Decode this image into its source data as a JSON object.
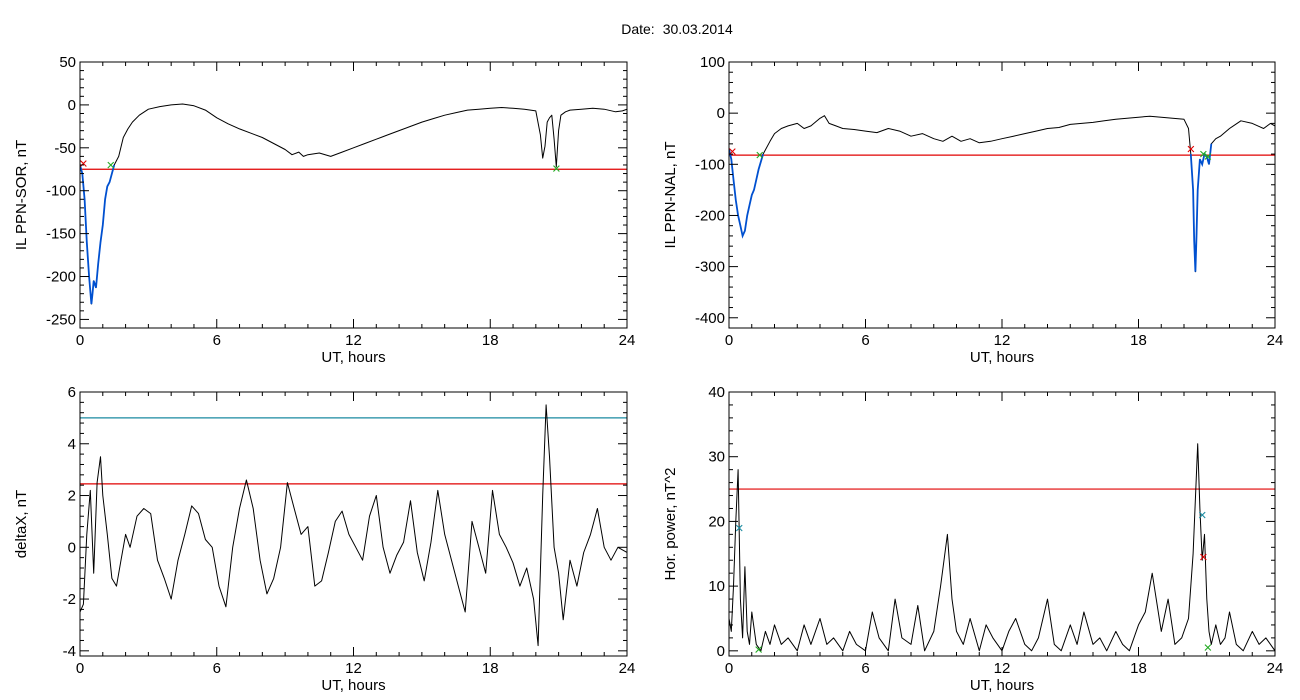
{
  "header": {
    "date_label": "Date:",
    "date_value": "30.03.2014"
  },
  "colors": {
    "trace": "#000000",
    "threshold_red": "#e00000",
    "threshold_blue": "#1a8aa0",
    "highlight_blue": "#0050d0",
    "marker_red": "#e00000",
    "marker_green": "#22aa22",
    "marker_blue": "#1a8aa0"
  },
  "chart_data": [
    {
      "id": "ppn-sor",
      "type": "line",
      "xlabel": "UT, hours",
      "ylabel": "IL PPN-SOR, nT",
      "xlim": [
        0,
        24
      ],
      "ylim": [
        -260,
        50
      ],
      "xticks": [
        0,
        6,
        12,
        18,
        24
      ],
      "yticks": [
        -250,
        -200,
        -150,
        -100,
        -50,
        0,
        50
      ],
      "threshold": {
        "value": -75,
        "color": "red"
      },
      "highlight_range": [
        0,
        1.5
      ],
      "series": [
        {
          "x": [
            0,
            0.1,
            0.2,
            0.3,
            0.4,
            0.5,
            0.55,
            0.6,
            0.7,
            0.8,
            0.9,
            1.0,
            1.1,
            1.2,
            1.3,
            1.5,
            1.7,
            1.9,
            2.1,
            2.3,
            2.6,
            3.0,
            3.5,
            4.0,
            4.5,
            5.0,
            5.5,
            6.0,
            6.5,
            7.0,
            7.5,
            8.0,
            8.5,
            9.0,
            9.3,
            9.6,
            9.8,
            10.0,
            10.5,
            11.0,
            11.5,
            12.0,
            12.5,
            13.0,
            13.5,
            14.0,
            14.5,
            15.0,
            15.5,
            16.0,
            16.5,
            17.0,
            17.5,
            18.0,
            18.5,
            19.0,
            19.5,
            20.0,
            20.2,
            20.3,
            20.4,
            20.5,
            20.6,
            20.7,
            20.8,
            20.9,
            21.0,
            21.1,
            21.3,
            21.5,
            22.0,
            22.5,
            23.0,
            23.5,
            23.8,
            24.0
          ],
          "y": [
            -70,
            -80,
            -110,
            -160,
            -200,
            -232,
            -220,
            -205,
            -213,
            -185,
            -160,
            -140,
            -110,
            -95,
            -90,
            -70,
            -60,
            -38,
            -28,
            -20,
            -12,
            -5,
            -2,
            0,
            1,
            -1,
            -6,
            -15,
            -22,
            -28,
            -33,
            -38,
            -45,
            -52,
            -58,
            -55,
            -60,
            -58,
            -56,
            -60,
            -55,
            -50,
            -45,
            -40,
            -35,
            -30,
            -25,
            -20,
            -16,
            -12,
            -9,
            -6,
            -5,
            -4,
            -3,
            -4,
            -5,
            -7,
            -35,
            -62,
            -48,
            -20,
            -15,
            -12,
            -40,
            -72,
            -30,
            -12,
            -8,
            -6,
            -5,
            -4,
            -5,
            -8,
            -7,
            -5
          ]
        }
      ],
      "markers": [
        {
          "x": 0.15,
          "y": -68,
          "color": "red",
          "label": "×"
        },
        {
          "x": 1.35,
          "y": -70,
          "color": "green",
          "label": "×"
        },
        {
          "x": 20.9,
          "y": -74,
          "color": "green",
          "label": "×"
        }
      ]
    },
    {
      "id": "ppn-nal",
      "type": "line",
      "xlabel": "UT, hours",
      "ylabel": "IL PPN-NAL, nT",
      "xlim": [
        0,
        24
      ],
      "ylim": [
        -420,
        100
      ],
      "xticks": [
        0,
        6,
        12,
        18,
        24
      ],
      "yticks": [
        -400,
        -300,
        -200,
        -100,
        0,
        100
      ],
      "threshold": {
        "value": -82,
        "color": "red"
      },
      "highlight_range": [
        0,
        1.5
      ],
      "highlight_range2": [
        20.3,
        21.2
      ],
      "series": [
        {
          "x": [
            0,
            0.1,
            0.2,
            0.3,
            0.4,
            0.5,
            0.6,
            0.7,
            0.8,
            0.9,
            1.0,
            1.1,
            1.2,
            1.3,
            1.5,
            1.8,
            2.0,
            2.3,
            2.6,
            3.0,
            3.3,
            3.6,
            4.0,
            4.2,
            4.4,
            4.7,
            5.0,
            5.5,
            6.0,
            6.5,
            7.0,
            7.5,
            8.0,
            8.5,
            9.0,
            9.4,
            9.8,
            10.2,
            10.6,
            11.0,
            11.5,
            12.0,
            12.5,
            13.0,
            13.5,
            14.0,
            14.5,
            15.0,
            15.5,
            16.0,
            16.5,
            17.0,
            17.5,
            18.0,
            18.5,
            19.0,
            19.5,
            20.0,
            20.2,
            20.3,
            20.4,
            20.45,
            20.5,
            20.55,
            20.6,
            20.7,
            20.8,
            20.9,
            21.0,
            21.1,
            21.2,
            21.4,
            21.6,
            22.0,
            22.5,
            23.0,
            23.5,
            23.8,
            24.0
          ],
          "y": [
            -70,
            -90,
            -130,
            -170,
            -200,
            -220,
            -240,
            -230,
            -200,
            -180,
            -160,
            -150,
            -130,
            -110,
            -80,
            -55,
            -40,
            -30,
            -25,
            -20,
            -30,
            -25,
            -10,
            -5,
            -20,
            -25,
            -30,
            -32,
            -35,
            -38,
            -30,
            -35,
            -45,
            -40,
            -50,
            -55,
            -45,
            -55,
            -50,
            -58,
            -55,
            -50,
            -45,
            -40,
            -35,
            -30,
            -28,
            -22,
            -20,
            -18,
            -15,
            -12,
            -10,
            -8,
            -6,
            -8,
            -10,
            -12,
            -30,
            -80,
            -150,
            -250,
            -310,
            -240,
            -150,
            -90,
            -100,
            -80,
            -85,
            -100,
            -60,
            -50,
            -45,
            -30,
            -15,
            -20,
            -30,
            -20,
            -25
          ]
        }
      ],
      "markers": [
        {
          "x": 0.15,
          "y": -75,
          "color": "red",
          "label": "×"
        },
        {
          "x": 1.35,
          "y": -82,
          "color": "green",
          "label": "×"
        },
        {
          "x": 20.3,
          "y": -70,
          "color": "red",
          "label": "×"
        },
        {
          "x": 20.85,
          "y": -80,
          "color": "green",
          "label": "×"
        },
        {
          "x": 21.05,
          "y": -85,
          "color": "green",
          "label": "×"
        }
      ]
    },
    {
      "id": "deltax",
      "type": "line",
      "xlabel": "UT, hours",
      "ylabel": "deltaX, nT",
      "xlim": [
        0,
        24
      ],
      "ylim": [
        -4.2,
        6
      ],
      "xticks": [
        0,
        6,
        12,
        18,
        24
      ],
      "yticks": [
        -4,
        -2,
        0,
        2,
        4,
        6
      ],
      "threshold": {
        "value": 2.45,
        "color": "red"
      },
      "threshold2": {
        "value": 5.0,
        "color": "blue"
      },
      "series": [
        {
          "x": [
            0,
            0.15,
            0.3,
            0.45,
            0.6,
            0.75,
            0.9,
            1.0,
            1.2,
            1.4,
            1.6,
            1.8,
            2.0,
            2.2,
            2.5,
            2.8,
            3.1,
            3.4,
            3.7,
            4.0,
            4.3,
            4.6,
            4.9,
            5.2,
            5.5,
            5.8,
            6.1,
            6.4,
            6.7,
            7.0,
            7.3,
            7.6,
            7.9,
            8.2,
            8.5,
            8.8,
            9.1,
            9.4,
            9.7,
            10.0,
            10.3,
            10.6,
            10.9,
            11.2,
            11.5,
            11.8,
            12.1,
            12.4,
            12.7,
            13.0,
            13.3,
            13.6,
            13.9,
            14.2,
            14.5,
            14.8,
            15.1,
            15.4,
            15.7,
            16.0,
            16.3,
            16.6,
            16.9,
            17.2,
            17.5,
            17.8,
            18.1,
            18.4,
            18.7,
            19.0,
            19.3,
            19.6,
            19.9,
            20.1,
            20.3,
            20.45,
            20.6,
            20.8,
            21.0,
            21.2,
            21.5,
            21.8,
            22.1,
            22.4,
            22.7,
            23.0,
            23.3,
            23.6,
            24.0
          ],
          "y": [
            -2.5,
            -2.2,
            0.5,
            2.2,
            -1.0,
            2.5,
            3.5,
            2.0,
            0.5,
            -1.2,
            -1.5,
            -0.5,
            0.5,
            0.0,
            1.2,
            1.5,
            1.3,
            -0.5,
            -1.2,
            -2.0,
            -0.5,
            0.5,
            1.6,
            1.3,
            0.3,
            0.0,
            -1.5,
            -2.3,
            0.0,
            1.5,
            2.6,
            1.5,
            -0.5,
            -1.8,
            -1.2,
            0.0,
            2.5,
            1.5,
            0.5,
            0.8,
            -1.5,
            -1.3,
            -0.2,
            1.0,
            1.4,
            0.5,
            0.0,
            -0.5,
            1.2,
            2.0,
            0.0,
            -1.0,
            -0.3,
            0.2,
            1.8,
            -0.2,
            -1.3,
            0.2,
            2.2,
            0.5,
            -0.5,
            -1.5,
            -2.5,
            1.0,
            0.0,
            -1.0,
            2.2,
            0.5,
            0.0,
            -0.6,
            -1.5,
            -0.8,
            -2.0,
            -3.8,
            2.0,
            5.5,
            3.5,
            0.0,
            -1.0,
            -2.8,
            -0.5,
            -1.5,
            -0.2,
            0.5,
            1.5,
            0.0,
            -0.5,
            0.0,
            -0.2
          ]
        }
      ],
      "markers": []
    },
    {
      "id": "hor-power",
      "type": "line",
      "xlabel": "UT, hours",
      "ylabel": "Hor. power, nT^2",
      "xlim": [
        0,
        24
      ],
      "ylim": [
        -0.8,
        40
      ],
      "xticks": [
        0,
        6,
        12,
        18,
        24
      ],
      "yticks": [
        0,
        10,
        20,
        30,
        40
      ],
      "threshold": {
        "value": 25,
        "color": "red"
      },
      "series": [
        {
          "x": [
            0,
            0.1,
            0.2,
            0.3,
            0.4,
            0.5,
            0.6,
            0.7,
            0.8,
            0.9,
            1.0,
            1.2,
            1.4,
            1.6,
            1.8,
            2.0,
            2.3,
            2.6,
            3.0,
            3.3,
            3.6,
            4.0,
            4.3,
            4.6,
            5.0,
            5.3,
            5.6,
            6.0,
            6.3,
            6.6,
            7.0,
            7.3,
            7.6,
            8.0,
            8.3,
            8.6,
            9.0,
            9.3,
            9.6,
            9.8,
            10.0,
            10.3,
            10.6,
            11.0,
            11.3,
            11.6,
            12.0,
            12.3,
            12.6,
            13.0,
            13.3,
            13.6,
            14.0,
            14.3,
            14.6,
            15.0,
            15.3,
            15.6,
            16.0,
            16.3,
            16.6,
            17.0,
            17.3,
            17.6,
            18.0,
            18.3,
            18.6,
            19.0,
            19.3,
            19.6,
            19.9,
            20.2,
            20.4,
            20.6,
            20.7,
            20.8,
            20.9,
            21.0,
            21.1,
            21.2,
            21.4,
            21.6,
            21.8,
            22.0,
            22.3,
            22.6,
            23.0,
            23.3,
            23.6,
            24.0
          ],
          "y": [
            5,
            3,
            10,
            20,
            28,
            8,
            2,
            13,
            3,
            1,
            6,
            1,
            0,
            3,
            1,
            4,
            1,
            2,
            0,
            4,
            1,
            5,
            1,
            2,
            0,
            3,
            1,
            0,
            6,
            2,
            0,
            8,
            2,
            1,
            7,
            0,
            3,
            10,
            18,
            8,
            3,
            1,
            5,
            0,
            4,
            2,
            0,
            3,
            5,
            1,
            0,
            2,
            8,
            1,
            0,
            4,
            1,
            6,
            1,
            2,
            0,
            3,
            1,
            0,
            4,
            6,
            12,
            3,
            8,
            1,
            2,
            5,
            15,
            32,
            22,
            14,
            18,
            8,
            3,
            1,
            4,
            1,
            2,
            6,
            1,
            0,
            3,
            1,
            2,
            0
          ]
        }
      ],
      "markers": [
        {
          "x": 0.45,
          "y": 19,
          "color": "blue",
          "label": "×"
        },
        {
          "x": 20.8,
          "y": 21,
          "color": "blue",
          "label": "×"
        },
        {
          "x": 20.85,
          "y": 14.5,
          "color": "red",
          "label": "×"
        },
        {
          "x": 21.05,
          "y": 0.5,
          "color": "green",
          "label": "×"
        },
        {
          "x": 1.3,
          "y": 0.2,
          "color": "green",
          "label": "×"
        }
      ]
    }
  ]
}
